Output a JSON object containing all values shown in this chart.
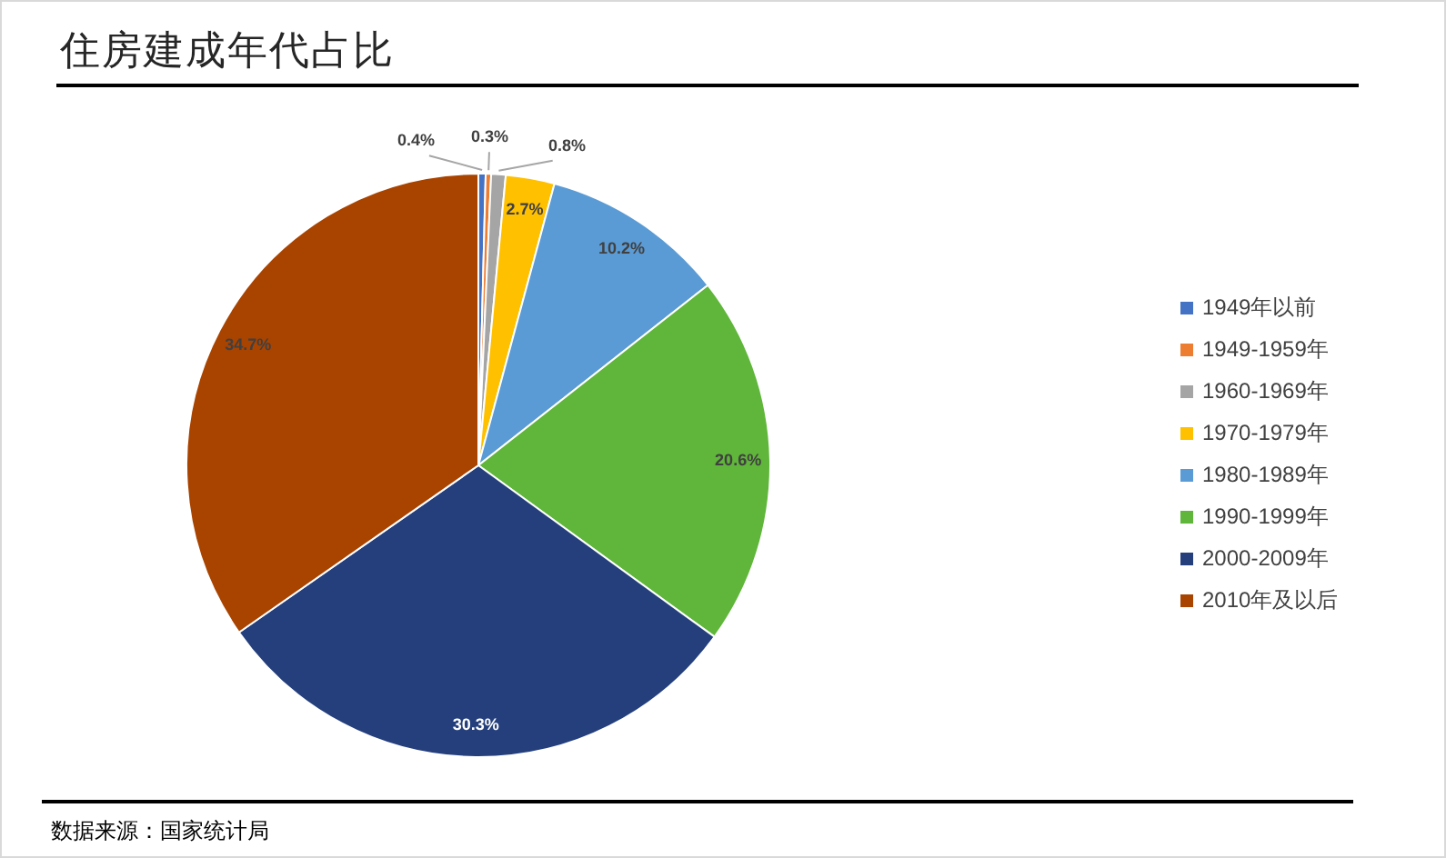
{
  "chart_data": {
    "type": "pie",
    "title": "住房建成年代占比",
    "categories": [
      "1949年以前",
      "1949-1959年",
      "1960-1969年",
      "1970-1979年",
      "1980-1989年",
      "1990-1999年",
      "2000-2009年",
      "2010年及以后"
    ],
    "values": [
      0.4,
      0.3,
      0.8,
      2.7,
      10.2,
      20.6,
      30.3,
      34.7
    ],
    "colors": [
      "#4472c4",
      "#ed7d31",
      "#a5a5a5",
      "#ffc000",
      "#5b9bd5",
      "#5fb63a",
      "#243f7c",
      "#a94300"
    ],
    "value_labels": [
      "0.4%",
      "0.3%",
      "0.8%",
      "2.7%",
      "10.2%",
      "20.6%",
      "30.3%",
      "34.7%"
    ],
    "legend": "right",
    "annotations": [
      "数据来源：国家统计局"
    ]
  }
}
